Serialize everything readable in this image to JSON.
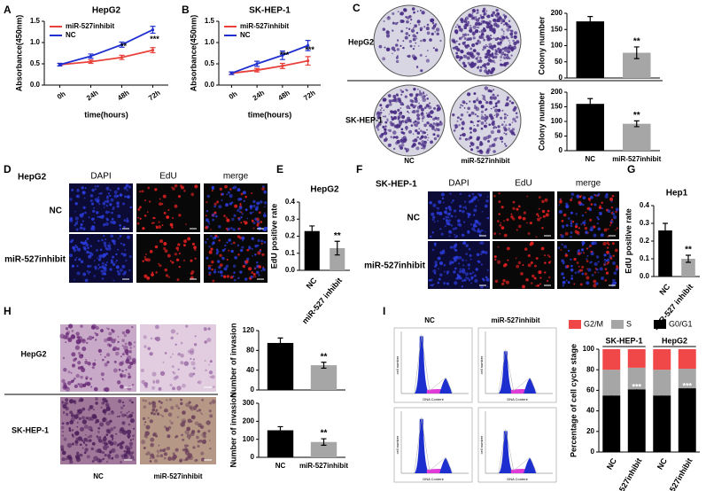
{
  "chart_data": [
    {
      "type": "line",
      "title": "HepG2",
      "y_label": "Absorbance(450nm)",
      "x_label": "time(hours)",
      "categories": [
        "0h",
        "24h",
        "48h",
        "72h"
      ],
      "series": [
        {
          "name": "miR-527inhibit",
          "color": "#e8413c",
          "values": [
            0.48,
            0.55,
            0.65,
            0.82
          ],
          "errors": [
            0.03,
            0.04,
            0.05,
            0.06
          ]
        },
        {
          "name": "NC",
          "color": "#1f2fd0",
          "values": [
            0.48,
            0.68,
            0.95,
            1.3
          ],
          "errors": [
            0.03,
            0.05,
            0.06,
            0.08
          ]
        }
      ],
      "ylim": [
        0,
        1.5
      ],
      "yticks": [
        {
          "value": 0,
          "label": "0.0"
        },
        0.5,
        {
          "value": 1,
          "label": "1.0"
        },
        1.5
      ],
      "legend": "upper left",
      "annotations": [
        "**",
        "***"
      ]
    },
    {
      "type": "line",
      "title": "SK-HEP-1",
      "y_label": "Absorbance(450nm)",
      "x_label": "time(hours)",
      "categories": [
        "0h",
        "24h",
        "48h",
        "72h"
      ],
      "series": [
        {
          "name": "miR-527inhibit",
          "color": "#e8413c",
          "values": [
            0.28,
            0.35,
            0.45,
            0.57
          ],
          "errors": [
            0.03,
            0.04,
            0.06,
            0.1
          ]
        },
        {
          "name": "NC",
          "color": "#1f2fd0",
          "values": [
            0.28,
            0.5,
            0.7,
            0.93
          ],
          "errors": [
            0.03,
            0.06,
            0.1,
            0.12
          ]
        }
      ],
      "ylim": [
        0,
        1.5
      ],
      "yticks": [
        {
          "value": 0,
          "label": "0.0"
        },
        0.5,
        {
          "value": 1,
          "label": "1.0"
        },
        1.5
      ],
      "legend": "upper left",
      "annotations": [
        "***",
        "***"
      ]
    },
    {
      "type": "bar",
      "y_label": "Colony number",
      "categories": [
        null,
        null
      ],
      "values": [
        175,
        78
      ],
      "errors": [
        15,
        18
      ],
      "colors": [
        "#000000",
        "#a6a6a6"
      ],
      "ylim": [
        0,
        200
      ],
      "yticks": [
        0,
        50,
        100,
        150,
        200
      ],
      "annotations": [
        "**"
      ]
    },
    {
      "type": "bar",
      "y_label": "Colony number",
      "categories": [
        "NC",
        "miR-527inhibit"
      ],
      "values": [
        160,
        92
      ],
      "errors": [
        18,
        10
      ],
      "colors": [
        "#000000",
        "#a6a6a6"
      ],
      "ylim": [
        0,
        200
      ],
      "yticks": [
        0,
        50,
        100,
        150,
        200
      ],
      "annotations": [
        "**"
      ]
    },
    {
      "type": "bar",
      "title": "HepG2",
      "y_label": "EdU positive rate",
      "categories": [
        "NC",
        "miR-527 inhibit"
      ],
      "values": [
        0.23,
        0.13
      ],
      "errors": [
        0.03,
        0.04
      ],
      "colors": [
        "#000000",
        "#a6a6a6"
      ],
      "ylim": [
        0,
        0.4
      ],
      "yticks": [
        {
          "value": 0,
          "label": "0.0"
        },
        0.1,
        0.2,
        0.3,
        0.4
      ],
      "annotations": [
        "**"
      ]
    },
    {
      "type": "bar",
      "title": "Hep1",
      "y_label": "EdU positive rate",
      "categories": [
        "NC",
        "miR-527 inhibit"
      ],
      "values": [
        0.26,
        0.1
      ],
      "errors": [
        0.04,
        0.02
      ],
      "colors": [
        "#000000",
        "#a6a6a6"
      ],
      "ylim": [
        0,
        0.4
      ],
      "yticks": [
        {
          "value": 0,
          "label": "0.0"
        },
        0.1,
        0.2,
        0.3,
        0.4
      ],
      "annotations": [
        "**"
      ]
    },
    {
      "type": "bar",
      "y_label": "Number of invasion",
      "categories": [
        null,
        null
      ],
      "values": [
        95,
        50
      ],
      "errors": [
        10,
        6
      ],
      "colors": [
        "#000000",
        "#a6a6a6"
      ],
      "ylim": [
        0,
        120
      ],
      "yticks": [
        0,
        40,
        80,
        120
      ],
      "annotations": [
        "**"
      ]
    },
    {
      "type": "bar",
      "y_label": "Number of invasion",
      "categories": [
        "NC",
        "miR-527inhibit"
      ],
      "values": [
        150,
        85
      ],
      "errors": [
        20,
        18
      ],
      "colors": [
        "#000000",
        "#a6a6a6"
      ],
      "ylim": [
        0,
        300
      ],
      "yticks": [
        0,
        100,
        200,
        300
      ],
      "annotations": [
        "**"
      ]
    },
    {
      "type": "stacked_bar",
      "y_label": "Percentage of cell cycle stage",
      "categories": [
        "NC",
        "miR-527inhibit",
        "NC",
        "miR-527inhibit"
      ],
      "groups": [
        "SK-HEP-1",
        "HepG2"
      ],
      "series": [
        {
          "name": "G2/M",
          "color": "#f04848",
          "values": [
            20,
            18,
            20,
            19
          ]
        },
        {
          "name": "S",
          "color": "#a6a6a6",
          "values": [
            25,
            21,
            25,
            19
          ]
        },
        {
          "name": "G0/G1",
          "color": "#000000",
          "values": [
            55,
            61,
            55,
            62
          ],
          "errors": [
            3,
            4,
            4,
            3
          ]
        }
      ],
      "ylim": [
        0,
        100
      ],
      "yticks": [
        0,
        20,
        40,
        60,
        80,
        100
      ],
      "legend": "top",
      "annotations": [
        "***",
        "***"
      ]
    }
  ],
  "figure": {
    "panel_letters": [
      "A",
      "B",
      "C",
      "D",
      "E",
      "F",
      "G",
      "H",
      "I"
    ],
    "C": {
      "rows": [
        "HepG2",
        "SK-HEP-1"
      ],
      "cols": [
        "NC",
        "miR-527inhibit"
      ]
    },
    "D": {
      "title": "HepG2",
      "cols": [
        "DAPI",
        "EdU",
        "merge"
      ],
      "rows": [
        "NC",
        "miR-527inhibit"
      ]
    },
    "F": {
      "title": "SK-HEP-1",
      "cols": [
        "DAPI",
        "EdU",
        "merge"
      ],
      "rows": [
        "NC",
        "miR-527inhibit"
      ]
    },
    "H": {
      "rows": [
        "HepG2",
        "SK-HEP-1"
      ],
      "cols": [
        "NC",
        "miR-527inhibit"
      ]
    },
    "I": {
      "cols": [
        "NC",
        "miR-527inhibit"
      ],
      "y_label": "cell number",
      "x_label": "DNA Content"
    }
  }
}
